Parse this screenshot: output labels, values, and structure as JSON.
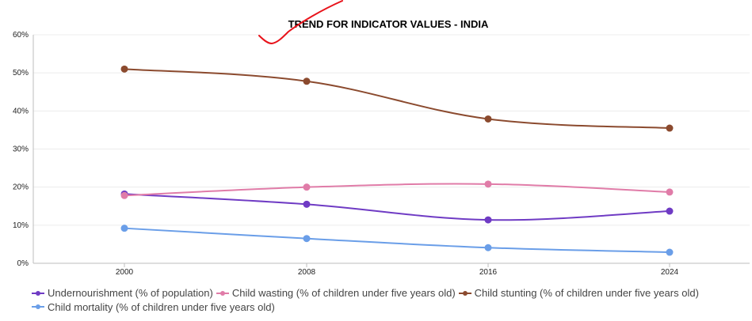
{
  "chart_data": {
    "type": "line",
    "title": "TREND FOR INDICATOR VALUES - INDIA",
    "categories": [
      "2000",
      "2008",
      "2016",
      "2024"
    ],
    "ylim": [
      0,
      60
    ],
    "yticks": [
      "0%",
      "10%",
      "20%",
      "30%",
      "40%",
      "50%",
      "60%"
    ],
    "grid": true,
    "legend_position": "bottom",
    "series": [
      {
        "name": "Undernourishment (% of population)",
        "color": "#6f3bc4",
        "values": [
          18.2,
          15.5,
          11.4,
          13.7
        ]
      },
      {
        "name": "Child wasting (% of children under five years old)",
        "color": "#e07ca8",
        "values": [
          17.8,
          20.0,
          20.8,
          18.7
        ]
      },
      {
        "name": "Child stunting (% of children under five years old)",
        "color": "#8b4a2e",
        "values": [
          51.0,
          47.8,
          37.9,
          35.5
        ]
      },
      {
        "name": "Child mortality (% of children under five years old)",
        "color": "#6a9ee8",
        "values": [
          9.2,
          6.5,
          4.1,
          2.9
        ]
      }
    ]
  },
  "annotation": {
    "color": "#e8131b"
  }
}
